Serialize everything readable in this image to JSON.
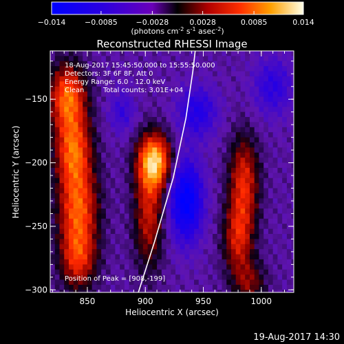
{
  "chart_data": {
    "type": "heatmap",
    "title": "Reconstructed RHESSI Image",
    "xlabel": "Heliocentric X (arcsec)",
    "ylabel": "Heliocentric Y (arcsec)",
    "xlim": [
      818,
      1028
    ],
    "ylim": [
      -302,
      -112
    ],
    "xticks": [
      850,
      900,
      950,
      1000
    ],
    "yticks": [
      -150,
      -200,
      -250,
      -300
    ],
    "colorbar": {
      "min": -0.014,
      "max": 0.014,
      "ticks": [
        "-0.014",
        "-0.0085",
        "-0.0028",
        "0.0028",
        "0.0085",
        "0.014"
      ],
      "label": "(photons cm",
      "label_sup1": "-2",
      "label_mid1": " s",
      "label_sup2": "-1",
      "label_mid2": " asec",
      "label_sup3": "-2",
      "label_end": ")"
    },
    "annotations": {
      "time_range": "18-Aug-2017 15:45:50.000 to 15:55:50.000",
      "detectors": "Detectors: 3F 6F 8F, Att 0",
      "energy": "Energy Range: 6.0 - 12.0 keV",
      "method": "Clean",
      "counts": "Total counts: 3.01E+04",
      "peak": "Position of Peak = [908,-199]"
    },
    "timestamp": "19-Aug-2017 14:30",
    "components": [
      {
        "x": 908,
        "y": -199,
        "sx": 10,
        "sy": 15,
        "amp": 0.014
      },
      {
        "x": 903,
        "y": -240,
        "sx": 9,
        "sy": 30,
        "amp": 0.0075
      },
      {
        "x": 833,
        "y": -148,
        "sx": 11,
        "sy": 18,
        "amp": 0.011
      },
      {
        "x": 838,
        "y": -190,
        "sx": 11,
        "sy": 20,
        "amp": 0.0105
      },
      {
        "x": 842,
        "y": -235,
        "sx": 12,
        "sy": 22,
        "amp": 0.01
      },
      {
        "x": 842,
        "y": -275,
        "sx": 11,
        "sy": 18,
        "amp": 0.0085
      },
      {
        "x": 985,
        "y": -215,
        "sx": 9,
        "sy": 25,
        "amp": 0.0085
      },
      {
        "x": 980,
        "y": -260,
        "sx": 9,
        "sy": 20,
        "amp": 0.0075
      },
      {
        "x": 990,
        "y": -295,
        "sx": 10,
        "sy": 12,
        "amp": 0.005
      },
      {
        "x": 935,
        "y": -230,
        "sx": 10,
        "sy": 22,
        "amp": -0.011
      },
      {
        "x": 945,
        "y": -160,
        "sx": 12,
        "sy": 14,
        "amp": -0.006
      },
      {
        "x": 1010,
        "y": -140,
        "sx": 12,
        "sy": 16,
        "amp": -0.005
      },
      {
        "x": 880,
        "y": -160,
        "sx": 8,
        "sy": 12,
        "amp": -0.004
      }
    ],
    "limb_arc": {
      "points": [
        [
          894,
          -302
        ],
        [
          908,
          -262
        ],
        [
          924,
          -212
        ],
        [
          935,
          -165
        ],
        [
          941,
          -128
        ],
        [
          943,
          -112
        ]
      ]
    }
  }
}
